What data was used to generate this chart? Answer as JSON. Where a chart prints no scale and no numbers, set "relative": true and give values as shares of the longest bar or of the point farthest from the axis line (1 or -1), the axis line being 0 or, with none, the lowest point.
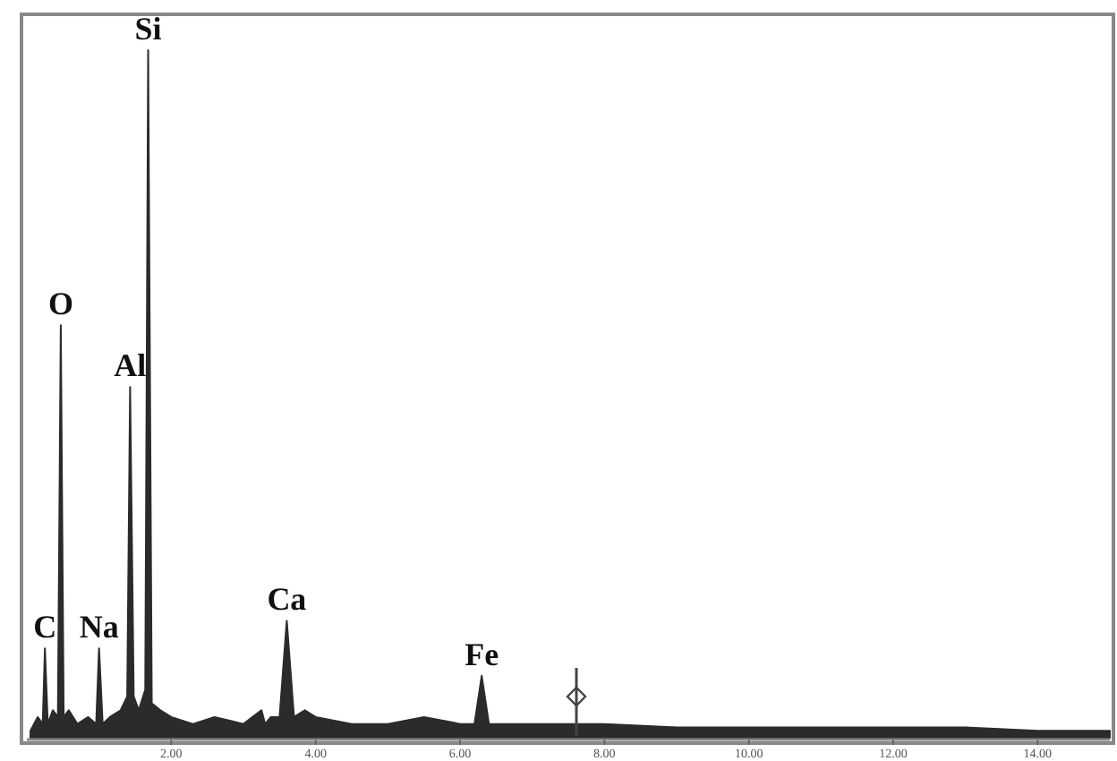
{
  "chart_data": {
    "type": "area",
    "relative": true,
    "x": [
      0.05,
      0.15,
      0.22,
      0.25,
      0.29,
      0.36,
      0.43,
      0.47,
      0.51,
      0.58,
      0.7,
      0.85,
      0.96,
      1.0,
      1.05,
      1.15,
      1.3,
      1.39,
      1.43,
      1.48,
      1.55,
      1.64,
      1.68,
      1.73,
      1.85,
      2.0,
      2.3,
      2.6,
      3.0,
      3.25,
      3.3,
      3.38,
      3.5,
      3.6,
      3.7,
      3.85,
      4.0,
      4.5,
      5.0,
      5.5,
      6.0,
      6.2,
      6.3,
      6.4,
      6.6,
      7.0,
      7.5,
      8.0,
      9.0,
      10.0,
      11.0,
      12.0,
      13.0,
      14.0,
      15.0
    ],
    "series": [
      {
        "color": "#2b2b2b",
        "values": [
          0.01,
          0.03,
          0.02,
          0.13,
          0.02,
          0.04,
          0.03,
          0.6,
          0.03,
          0.04,
          0.02,
          0.03,
          0.02,
          0.13,
          0.02,
          0.03,
          0.04,
          0.06,
          0.51,
          0.06,
          0.04,
          0.07,
          1.0,
          0.05,
          0.04,
          0.03,
          0.02,
          0.03,
          0.02,
          0.04,
          0.02,
          0.03,
          0.03,
          0.17,
          0.03,
          0.04,
          0.03,
          0.02,
          0.02,
          0.03,
          0.02,
          0.02,
          0.09,
          0.02,
          0.02,
          0.02,
          0.02,
          0.02,
          0.015,
          0.015,
          0.015,
          0.015,
          0.015,
          0.01,
          0.01
        ]
      }
    ],
    "xlim": [
      0,
      15
    ],
    "xticks": [
      {
        "value": 2,
        "label": "2.00"
      },
      {
        "value": 4,
        "label": "4.00"
      },
      {
        "value": 6,
        "label": "6.00"
      },
      {
        "value": 8,
        "label": "8.00"
      },
      {
        "value": 10,
        "label": "10.00"
      },
      {
        "value": 12,
        "label": "12.00"
      },
      {
        "value": 14,
        "label": "14.00"
      }
    ],
    "annotations": [
      {
        "text": "C",
        "x": 0.25,
        "y": 0.13
      },
      {
        "text": "O",
        "x": 0.47,
        "y": 0.6
      },
      {
        "text": "Na",
        "x": 1.0,
        "y": 0.13
      },
      {
        "text": "Al",
        "x": 1.43,
        "y": 0.51
      },
      {
        "text": "Si",
        "x": 1.68,
        "y": 1.0
      },
      {
        "text": "Ca",
        "x": 3.6,
        "y": 0.17
      },
      {
        "text": "Fe",
        "x": 6.3,
        "y": 0.09
      }
    ]
  }
}
